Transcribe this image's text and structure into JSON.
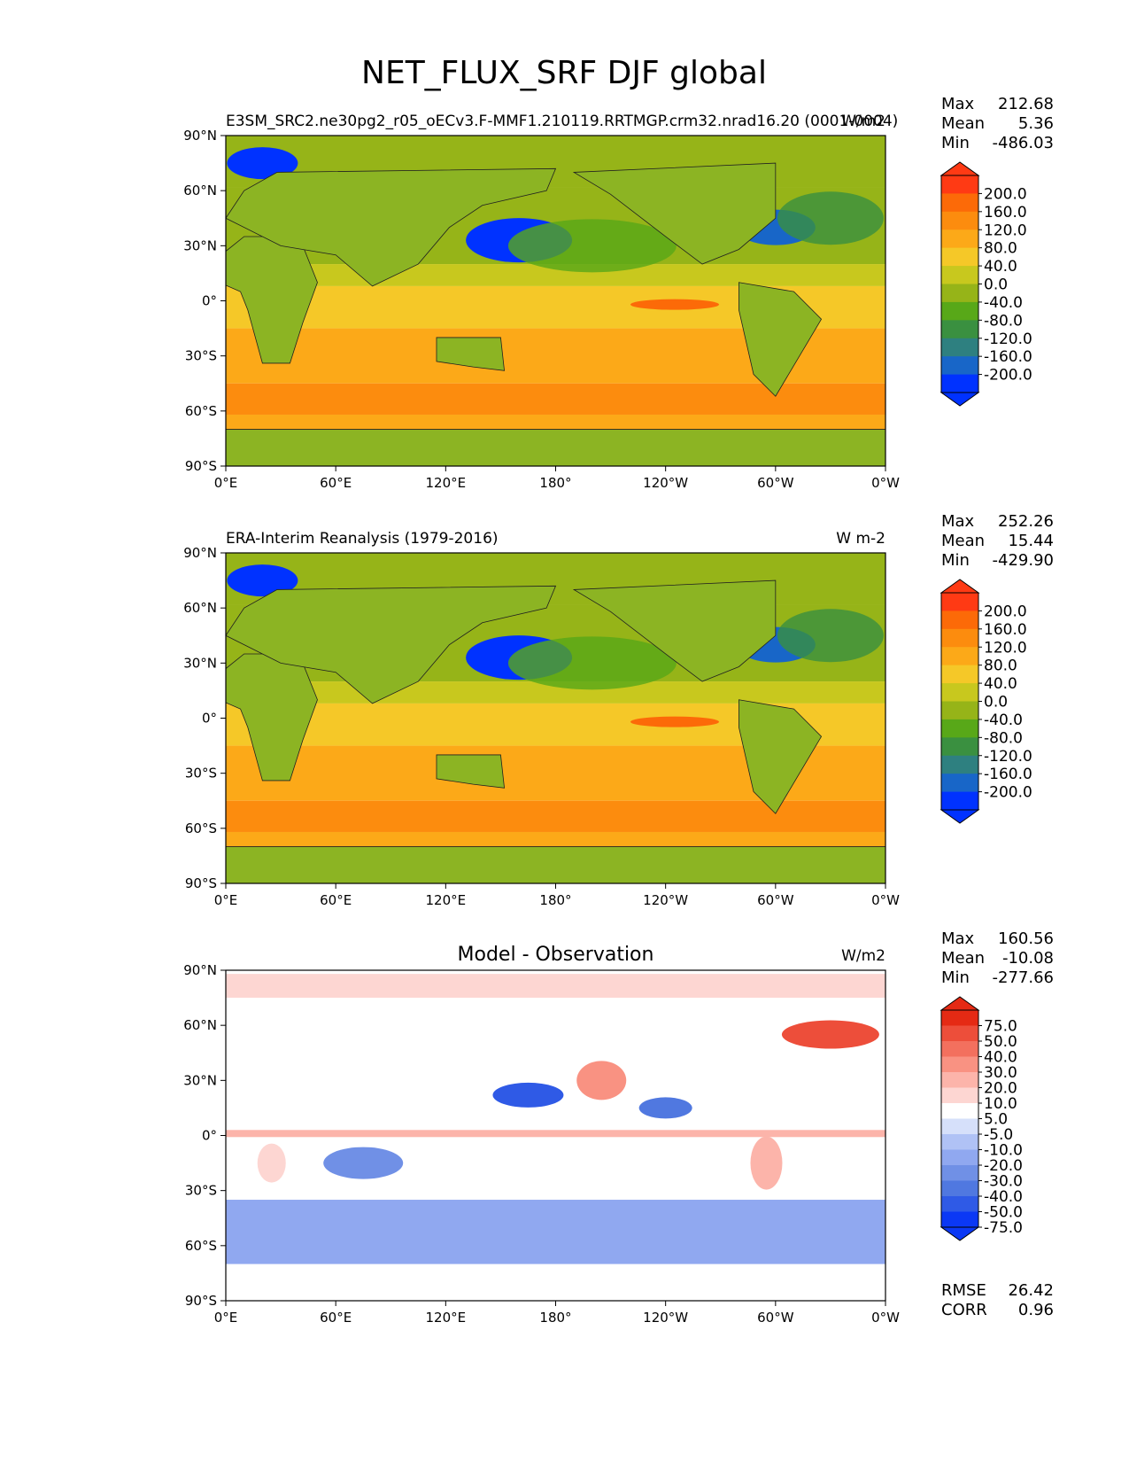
{
  "figure": {
    "title": "NET_FLUX_SRF DJF global"
  },
  "colors": {
    "abs_levels": [
      "#0032ff",
      "#1866c8",
      "#2e8080",
      "#3a9040",
      "#58a818",
      "#96b418",
      "#c8c81e",
      "#f5c828",
      "#fca918",
      "#fc8c0e",
      "#fc6a08",
      "#ff3a14"
    ],
    "diff_levels": [
      "#0b38f5",
      "#2f5ae6",
      "#5078e0",
      "#7090e6",
      "#90a8f0",
      "#b0c2f5",
      "#d6e0fa",
      "#ffffff",
      "#fdd6d2",
      "#fcb4aa",
      "#f99282",
      "#f3705e",
      "#ed4e3a",
      "#e52a14"
    ],
    "land_abs": "#8cb423",
    "ocean_abs": "#c8c81e"
  },
  "chart_data": [
    {
      "type": "heatmap",
      "subtitle_left": "E3SM_SRC2.ne30pg2_r05_oECv3.F-MMF1.210119.RRTMGP.crm32.nrad16.20 (0001-0004)",
      "subtitle_right": "W/m2",
      "stats": {
        "max": "212.68",
        "mean": "5.36",
        "min": "-486.03"
      },
      "x_ticks": [
        "0°E",
        "60°E",
        "120°E",
        "180°",
        "120°W",
        "60°W",
        "0°W"
      ],
      "y_ticks": [
        "90°N",
        "60°N",
        "30°N",
        "0°",
        "30°S",
        "60°S",
        "90°S"
      ],
      "xlim": [
        0,
        360
      ],
      "ylim": [
        -90,
        90
      ],
      "colorbar_labels": [
        "200.0",
        "160.0",
        "120.0",
        "80.0",
        "40.0",
        "0.0",
        "-40.0",
        "-80.0",
        "-120.0",
        "-160.0",
        "-200.0"
      ],
      "colorbar_extend": "both"
    },
    {
      "type": "heatmap",
      "subtitle_left": "ERA-Interim Reanalysis (1979-2016)",
      "subtitle_right": "W m-2",
      "stats": {
        "max": "252.26",
        "mean": "15.44",
        "min": "-429.90"
      },
      "x_ticks": [
        "0°E",
        "60°E",
        "120°E",
        "180°",
        "120°W",
        "60°W",
        "0°W"
      ],
      "y_ticks": [
        "90°N",
        "60°N",
        "30°N",
        "0°",
        "30°S",
        "60°S",
        "90°S"
      ],
      "xlim": [
        0,
        360
      ],
      "ylim": [
        -90,
        90
      ],
      "colorbar_labels": [
        "200.0",
        "160.0",
        "120.0",
        "80.0",
        "40.0",
        "0.0",
        "-40.0",
        "-80.0",
        "-120.0",
        "-160.0",
        "-200.0"
      ],
      "colorbar_extend": "both"
    },
    {
      "type": "heatmap",
      "subtitle_center": "Model - Observation",
      "subtitle_right": "W/m2",
      "stats": {
        "max": "160.56",
        "mean": "-10.08",
        "min": "-277.66"
      },
      "x_ticks": [
        "0°E",
        "60°E",
        "120°E",
        "180°",
        "120°W",
        "60°W",
        "0°W"
      ],
      "y_ticks": [
        "90°N",
        "60°N",
        "30°N",
        "0°",
        "30°S",
        "60°S",
        "90°S"
      ],
      "xlim": [
        0,
        360
      ],
      "ylim": [
        -90,
        90
      ],
      "colorbar_labels": [
        "75.0",
        "50.0",
        "40.0",
        "30.0",
        "20.0",
        "10.0",
        "5.0",
        "-5.0",
        "-10.0",
        "-20.0",
        "-30.0",
        "-40.0",
        "-50.0",
        "-75.0"
      ],
      "colorbar_extend": "both",
      "rmse": "26.42",
      "corr": "0.96"
    }
  ],
  "labels": {
    "max": "Max",
    "mean": "Mean",
    "min": "Min",
    "rmse": "RMSE",
    "corr": "CORR"
  }
}
